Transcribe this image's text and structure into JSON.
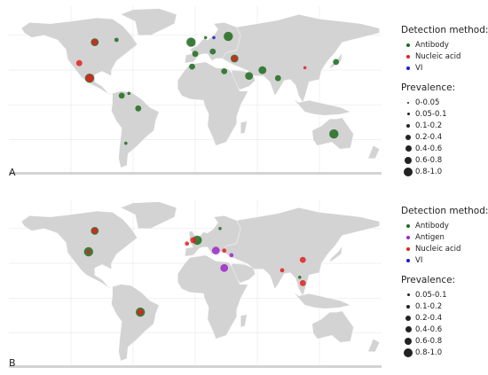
{
  "colors": {
    "Antibody": "#1e6b1e",
    "Nucleic acid": "#e02020",
    "VI": "#1a1acc",
    "Antigen": "#9a28c8",
    "land": "#d3d3d3",
    "gridline": "#e6e6e6"
  },
  "prevalence_classes": [
    "0-0.05",
    "0.05-0.1",
    "0.1-0.2",
    "0.2-0.4",
    "0.4-0.6",
    "0.6-0.8",
    "0.8-1.0"
  ],
  "panels": [
    {
      "letter": "A",
      "legend": {
        "method_title": "Detection method:",
        "methods": [
          "Antibody",
          "Nucleic acid",
          "VI"
        ],
        "prevalence_title": "Prevalence:",
        "prevalence": [
          "0-0.05",
          "0.05-0.1",
          "0.1-0.2",
          "0.2-0.4",
          "0.4-0.6",
          "0.6-0.8",
          "0.8-1.0"
        ]
      },
      "points": [
        {
          "lon": -97,
          "lat": 54,
          "method": "Antibody",
          "prev": "0.4-0.6"
        },
        {
          "lon": -97,
          "lat": 54,
          "method": "Nucleic acid",
          "prev": "0.2-0.4"
        },
        {
          "lon": -76,
          "lat": 56,
          "method": "Antibody",
          "prev": "0.1-0.2"
        },
        {
          "lon": -112,
          "lat": 36,
          "method": "Nucleic acid",
          "prev": "0.2-0.4"
        },
        {
          "lon": -102,
          "lat": 23,
          "method": "Antibody",
          "prev": "0.6-0.8"
        },
        {
          "lon": -102,
          "lat": 23,
          "method": "Nucleic acid",
          "prev": "0.4-0.6"
        },
        {
          "lon": -71,
          "lat": 8,
          "method": "Antibody",
          "prev": "0.2-0.4"
        },
        {
          "lon": -64,
          "lat": 10,
          "method": "Antibody",
          "prev": "0.05-0.1"
        },
        {
          "lon": -55,
          "lat": -3,
          "method": "Antibody",
          "prev": "0.2-0.4"
        },
        {
          "lon": -67,
          "lat": -33,
          "method": "Antibody",
          "prev": "0.05-0.1"
        },
        {
          "lon": -4,
          "lat": 54,
          "method": "Antibody",
          "prev": "0.6-0.8"
        },
        {
          "lon": 10,
          "lat": 58,
          "method": "Antibody",
          "prev": "0.05-0.1"
        },
        {
          "lon": 18,
          "lat": 58,
          "method": "VI",
          "prev": "0.05-0.1"
        },
        {
          "lon": 32,
          "lat": 59,
          "method": "Antibody",
          "prev": "0.6-0.8"
        },
        {
          "lon": 0,
          "lat": 44,
          "method": "Antibody",
          "prev": "0.2-0.4"
        },
        {
          "lon": 17,
          "lat": 46,
          "method": "Antibody",
          "prev": "0.2-0.4"
        },
        {
          "lon": 38,
          "lat": 40,
          "method": "Antibody",
          "prev": "0.4-0.6"
        },
        {
          "lon": 38,
          "lat": 40,
          "method": "Nucleic acid",
          "prev": "0.2-0.4"
        },
        {
          "lon": -3,
          "lat": 33,
          "method": "Antibody",
          "prev": "0.2-0.4"
        },
        {
          "lon": 28,
          "lat": 29,
          "method": "Antibody",
          "prev": "0.2-0.4"
        },
        {
          "lon": 52,
          "lat": 25,
          "method": "Antibody",
          "prev": "0.4-0.6"
        },
        {
          "lon": 65,
          "lat": 30,
          "method": "Antibody",
          "prev": "0.4-0.6"
        },
        {
          "lon": 80,
          "lat": 23,
          "method": "Antibody",
          "prev": "0.2-0.4"
        },
        {
          "lon": 106,
          "lat": 32,
          "method": "Nucleic acid",
          "prev": "0.05-0.1"
        },
        {
          "lon": 136,
          "lat": 37,
          "method": "Antibody",
          "prev": "0.2-0.4"
        },
        {
          "lon": 134,
          "lat": -25,
          "method": "Antibody",
          "prev": "0.6-0.8"
        }
      ]
    },
    {
      "letter": "B",
      "legend": {
        "method_title": "Detection method:",
        "methods": [
          "Antibody",
          "Antigen",
          "Nucleic acid",
          "VI"
        ],
        "prevalence_title": "Prevalence:",
        "prevalence": [
          "0.05-0.1",
          "0.1-0.2",
          "0.2-0.4",
          "0.4-0.6",
          "0.6-0.8",
          "0.8-1.0"
        ]
      },
      "points": [
        {
          "lon": -97,
          "lat": 58,
          "method": "Antibody",
          "prev": "0.4-0.6"
        },
        {
          "lon": -97,
          "lat": 58,
          "method": "Nucleic acid",
          "prev": "0.2-0.4"
        },
        {
          "lon": -103,
          "lat": 40,
          "method": "Antibody",
          "prev": "0.6-0.8"
        },
        {
          "lon": -103,
          "lat": 40,
          "method": "Nucleic acid",
          "prev": "0.1-0.2"
        },
        {
          "lon": 2,
          "lat": 50,
          "method": "Antibody",
          "prev": "0.6-0.8"
        },
        {
          "lon": -2,
          "lat": 50,
          "method": "Nucleic acid",
          "prev": "0.2-0.4"
        },
        {
          "lon": -8,
          "lat": 47,
          "method": "Nucleic acid",
          "prev": "0.1-0.2"
        },
        {
          "lon": 24,
          "lat": 60,
          "method": "Antibody",
          "prev": "0.05-0.1"
        },
        {
          "lon": 20,
          "lat": 41,
          "method": "Antigen",
          "prev": "0.4-0.6"
        },
        {
          "lon": 28,
          "lat": 41,
          "method": "Nucleic acid",
          "prev": "0.1-0.2"
        },
        {
          "lon": 35,
          "lat": 37,
          "method": "Antigen",
          "prev": "0.1-0.2"
        },
        {
          "lon": 28,
          "lat": 26,
          "method": "Antigen",
          "prev": "0.4-0.6"
        },
        {
          "lon": 104,
          "lat": 33,
          "method": "Nucleic acid",
          "prev": "0.2-0.4"
        },
        {
          "lon": 84,
          "lat": 24,
          "method": "Nucleic acid",
          "prev": "0.1-0.2"
        },
        {
          "lon": 101,
          "lat": 18,
          "method": "Antibody",
          "prev": "0.05-0.1"
        },
        {
          "lon": 104,
          "lat": 13,
          "method": "Nucleic acid",
          "prev": "0.2-0.4"
        },
        {
          "lon": -53,
          "lat": -12,
          "method": "Antibody",
          "prev": "0.6-0.8"
        },
        {
          "lon": -53,
          "lat": -12,
          "method": "Nucleic acid",
          "prev": "0.2-0.4"
        }
      ]
    }
  ]
}
